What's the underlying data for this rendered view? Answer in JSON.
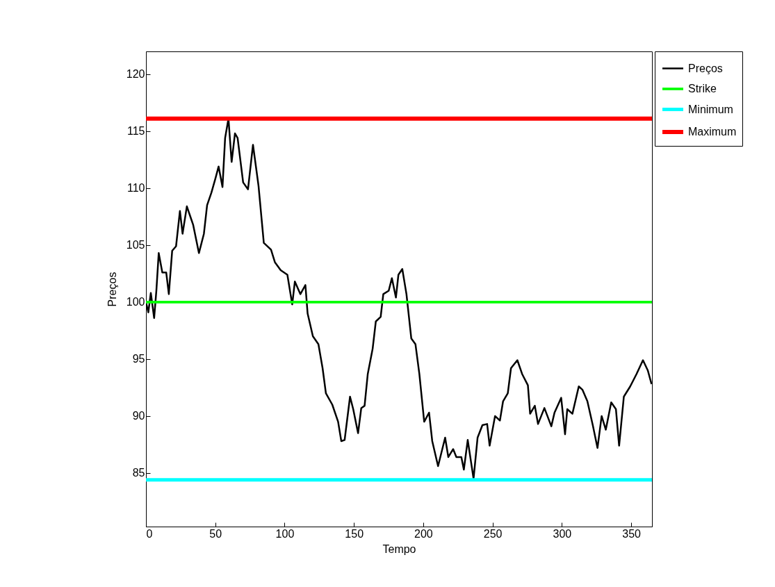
{
  "chart_data": {
    "type": "line",
    "xlabel": "Tempo",
    "ylabel": "Preços",
    "xlim": [
      0,
      365
    ],
    "ylim": [
      80.3,
      122
    ],
    "xticks": [
      0,
      50,
      100,
      150,
      200,
      250,
      300,
      350
    ],
    "yticks": [
      85,
      90,
      95,
      100,
      105,
      110,
      115,
      120
    ],
    "grid": false,
    "legend": "top right",
    "series": [
      {
        "name": "Preços",
        "color": "#000000",
        "x": [
          0,
          1.7,
          3.5,
          5.9,
          7.5,
          9.2,
          11.8,
          14.6,
          16.5,
          18.9,
          21.7,
          24.5,
          26.4,
          29.5,
          32.3,
          34,
          38.2,
          41.8,
          44.1,
          47.2,
          50,
          52.4,
          55.2,
          57.1,
          59.5,
          61.8,
          64.2,
          66.1,
          70.1,
          73.6,
          77.2,
          81.2,
          85,
          90.2,
          93,
          97.2,
          102,
          105.5,
          107.4,
          111.4,
          115,
          116.6,
          120.4,
          124.4,
          127.4,
          129.8,
          134.4,
          138.6,
          140.9,
          143.3,
          147.2,
          149.5,
          153,
          155.3,
          157.7,
          160,
          163.5,
          165.8,
          169.3,
          171.2,
          175.1,
          177.4,
          180.3,
          182.1,
          184.9,
          187.9,
          191.4,
          194.4,
          197.2,
          200.7,
          204.2,
          206.5,
          210.7,
          215.8,
          218.1,
          221.6,
          223.9,
          227.5,
          229.3,
          232.1,
          236.3,
          239.2,
          242.7,
          246.1,
          247.9,
          251.8,
          255.3,
          257.6,
          261,
          263.3,
          267.9,
          271.3,
          275.5,
          277.1,
          280.5,
          282.8,
          287.4,
          292.4,
          294.7,
          299.5,
          302.3,
          303.9,
          307.6,
          312.2,
          314.9,
          318.4,
          322.3,
          325.7,
          328.7,
          331.7,
          335.6,
          339,
          341.3,
          344.7,
          349.3,
          353.9,
          358.5,
          362,
          364.7
        ],
        "values": [
          100,
          99.1,
          100.8,
          98.6,
          101,
          104.3,
          102.6,
          102.6,
          100.7,
          104.5,
          104.9,
          108,
          106,
          108.4,
          107.4,
          106.8,
          104.3,
          106,
          108.5,
          109.6,
          110.8,
          111.9,
          110.1,
          114.4,
          116.1,
          112.3,
          114.8,
          114.4,
          110.5,
          109.9,
          113.8,
          110.2,
          105.2,
          104.6,
          103.5,
          102.8,
          102.4,
          99.8,
          101.8,
          100.7,
          101.5,
          99,
          97,
          96.3,
          94.2,
          92,
          91,
          89.5,
          87.8,
          87.9,
          91.7,
          90.6,
          88.5,
          90.7,
          90.9,
          93.7,
          95.9,
          98.3,
          98.7,
          100.7,
          101,
          102.1,
          100.4,
          102.4,
          102.9,
          100.7,
          96.8,
          96.3,
          93.7,
          89.5,
          90.3,
          87.8,
          85.6,
          88.1,
          86.4,
          87.1,
          86.4,
          86.4,
          85.3,
          87.9,
          84.5,
          88.1,
          89.2,
          89.3,
          87.4,
          90,
          89.6,
          91.3,
          92,
          94.2,
          94.9,
          93.7,
          92.7,
          90.2,
          90.9,
          89.3,
          90.7,
          89.1,
          90.3,
          91.6,
          88.4,
          90.6,
          90.2,
          92.6,
          92.3,
          91.3,
          89.2,
          87.2,
          90,
          88.8,
          91.2,
          90.6,
          87.4,
          91.7,
          92.6,
          93.7,
          94.9,
          94,
          92.8
        ]
      },
      {
        "name": "Strike",
        "color": "#00ff00",
        "x": [
          0,
          365
        ],
        "values": [
          100,
          100
        ]
      },
      {
        "name": "Minimum",
        "color": "#00ffff",
        "x": [
          0,
          365
        ],
        "values": [
          84.4,
          84.4
        ]
      },
      {
        "name": "Maximum",
        "color": "#ff0000",
        "x": [
          0,
          365
        ],
        "values": [
          116.1,
          116.1
        ]
      }
    ]
  }
}
